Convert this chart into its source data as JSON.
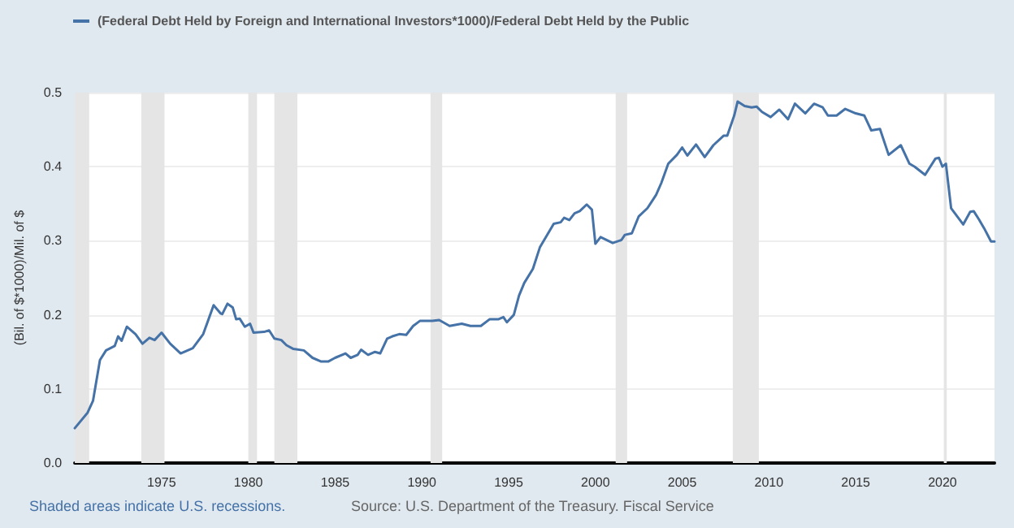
{
  "chart_data": {
    "type": "line",
    "ylabel": "(Bil. of $*1000)/Mil. of $",
    "x": [
      1970.0,
      1970.74,
      1971.05,
      1971.45,
      1971.8,
      1972.3,
      1972.5,
      1972.7,
      1973.0,
      1973.5,
      1973.9,
      1974.3,
      1974.6,
      1975.0,
      1975.5,
      1976.1,
      1976.8,
      1977.4,
      1978.0,
      1978.4,
      1978.5,
      1978.8,
      1979.1,
      1979.3,
      1979.5,
      1979.8,
      1980.1,
      1980.3,
      1980.9,
      1981.2,
      1981.5,
      1981.9,
      1982.2,
      1982.6,
      1983.2,
      1983.7,
      1984.2,
      1984.6,
      1985.0,
      1985.6,
      1985.9,
      1986.3,
      1986.5,
      1986.9,
      1987.3,
      1987.6,
      1988.0,
      1988.3,
      1988.7,
      1989.1,
      1989.5,
      1989.9,
      1990.6,
      1991.0,
      1991.6,
      1992.3,
      1992.8,
      1993.4,
      1993.9,
      1994.4,
      1994.7,
      1994.9,
      1995.3,
      1995.6,
      1995.9,
      1996.4,
      1996.8,
      1997.6,
      1998.0,
      1998.2,
      1998.5,
      1998.8,
      1999.1,
      1999.5,
      1999.8,
      2000.0,
      2000.3,
      2001.0,
      2001.5,
      2001.7,
      2002.1,
      2002.5,
      2003.0,
      2003.5,
      2003.8,
      2004.2,
      2004.7,
      2005.0,
      2005.3,
      2005.8,
      2006.3,
      2006.8,
      2007.4,
      2007.6,
      2008.0,
      2008.2,
      2008.6,
      2009.0,
      2009.3,
      2009.6,
      2010.1,
      2010.6,
      2011.1,
      2011.5,
      2012.1,
      2012.6,
      2013.1,
      2013.4,
      2013.9,
      2014.4,
      2015.0,
      2015.5,
      2015.9,
      2016.4,
      2016.9,
      2017.6,
      2018.1,
      2018.4,
      2019.0,
      2019.6,
      2019.8,
      2020.0,
      2020.2,
      2020.5,
      2021.2,
      2021.6,
      2021.8,
      2022.1,
      2022.4,
      2022.8,
      2023.0
    ],
    "series": [
      {
        "name": "(Federal Debt Held by Foreign and International Investors*1000)/Federal Debt Held by the Public",
        "color": "#4572a7",
        "values": [
          0.047,
          0.068,
          0.084,
          0.139,
          0.152,
          0.158,
          0.171,
          0.165,
          0.184,
          0.174,
          0.161,
          0.169,
          0.166,
          0.176,
          0.161,
          0.148,
          0.155,
          0.174,
          0.213,
          0.202,
          0.201,
          0.215,
          0.21,
          0.194,
          0.195,
          0.184,
          0.188,
          0.176,
          0.177,
          0.179,
          0.168,
          0.166,
          0.159,
          0.154,
          0.152,
          0.142,
          0.137,
          0.137,
          0.142,
          0.148,
          0.142,
          0.146,
          0.153,
          0.146,
          0.15,
          0.148,
          0.168,
          0.171,
          0.174,
          0.173,
          0.185,
          0.192,
          0.192,
          0.193,
          0.185,
          0.188,
          0.185,
          0.185,
          0.194,
          0.194,
          0.197,
          0.19,
          0.2,
          0.226,
          0.243,
          0.262,
          0.291,
          0.323,
          0.325,
          0.331,
          0.328,
          0.337,
          0.34,
          0.349,
          0.342,
          0.296,
          0.305,
          0.297,
          0.301,
          0.308,
          0.31,
          0.333,
          0.344,
          0.362,
          0.378,
          0.404,
          0.416,
          0.426,
          0.415,
          0.43,
          0.413,
          0.429,
          0.442,
          0.442,
          0.469,
          0.488,
          0.482,
          0.48,
          0.481,
          0.474,
          0.467,
          0.477,
          0.464,
          0.485,
          0.472,
          0.485,
          0.48,
          0.469,
          0.469,
          0.478,
          0.472,
          0.469,
          0.449,
          0.451,
          0.416,
          0.429,
          0.404,
          0.4,
          0.389,
          0.411,
          0.412,
          0.4,
          0.404,
          0.344,
          0.322,
          0.339,
          0.34,
          0.329,
          0.317,
          0.299,
          0.299
        ]
      }
    ],
    "xlim": [
      1970,
      2023
    ],
    "xticks": [
      1975,
      1980,
      1985,
      1990,
      1995,
      2000,
      2005,
      2010,
      2015,
      2020
    ],
    "ylim": [
      0,
      0.5
    ],
    "yticks": [
      {
        "value": 0,
        "label": "0.0"
      },
      0.1,
      0.2,
      0.3,
      0.4,
      0.5
    ],
    "bands": [
      {
        "axis": "x",
        "from": 1969.92,
        "to": 1970.83,
        "color": "#e5e5e5"
      },
      {
        "axis": "x",
        "from": 1973.83,
        "to": 1975.17,
        "color": "#e5e5e5"
      },
      {
        "axis": "x",
        "from": 1980.0,
        "to": 1980.5,
        "color": "#e5e5e5"
      },
      {
        "axis": "x",
        "from": 1981.5,
        "to": 1982.83,
        "color": "#e5e5e5"
      },
      {
        "axis": "x",
        "from": 1990.5,
        "to": 1991.17,
        "color": "#e5e5e5"
      },
      {
        "axis": "x",
        "from": 2001.17,
        "to": 2001.83,
        "color": "#e5e5e5"
      },
      {
        "axis": "x",
        "from": 2007.92,
        "to": 2009.42,
        "color": "#e5e5e5"
      },
      {
        "axis": "x",
        "from": 2020.08,
        "to": 2020.25,
        "color": "#e5e5e5"
      }
    ],
    "annotations": [
      "Shaded areas indicate U.S. recessions.",
      "Source: U.S. Department of the Treasury. Fiscal Service"
    ],
    "grid": "y",
    "legend": "top left",
    "marker": "none",
    "line_style": "solid"
  }
}
